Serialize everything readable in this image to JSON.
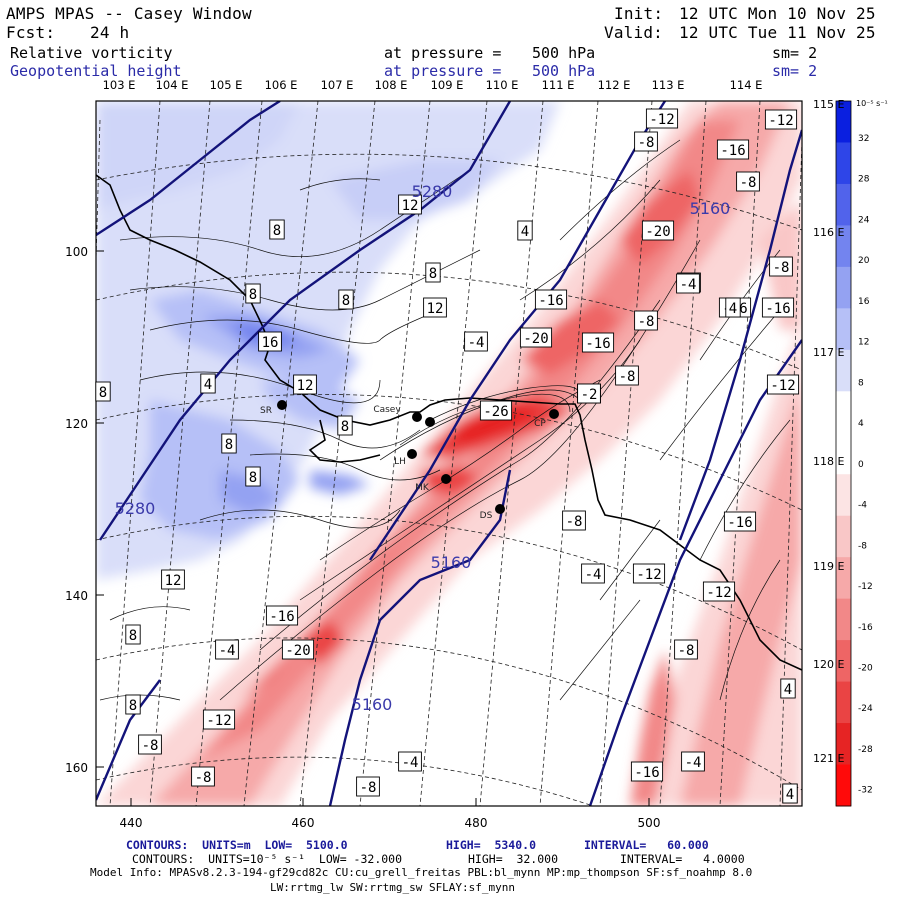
{
  "header": {
    "title": "AMPS MPAS -- Casey Window",
    "init_label": "Init:",
    "init_value": "12 UTC Mon 10 Nov 25",
    "fcst_label": "Fcst:",
    "fcst_value": "24 h",
    "valid_label": "Valid:",
    "valid_value": "12 UTC Tue 11 Nov 25"
  },
  "fields": [
    {
      "name": "Relative vorticity",
      "pressure_label": "at pressure =",
      "pressure_value": "500 hPa",
      "sm": "sm= 2"
    },
    {
      "name": "Geopotential height",
      "pressure_label": "at pressure =",
      "pressure_value": "500 hPa",
      "sm": "sm= 2"
    }
  ],
  "map": {
    "top_lon_labels": [
      "103 E",
      "104 E",
      "105 E",
      "106 E",
      "107 E",
      "108 E",
      "109 E",
      "110 E",
      "111 E",
      "112 E",
      "113 E",
      "114 E"
    ],
    "right_lon_labels": [
      "115 E",
      "116 E",
      "117 E",
      "118 E",
      "119 E",
      "120 E",
      "121 E"
    ],
    "y_ticks": [
      "100",
      "120",
      "140",
      "160"
    ],
    "x_ticks": [
      "440",
      "460",
      "480",
      "500"
    ],
    "stations": [
      {
        "label": "Casey"
      },
      {
        "label": "SR"
      },
      {
        "label": "LH"
      },
      {
        "label": "MK"
      },
      {
        "label": "DS"
      },
      {
        "label": "CP"
      }
    ],
    "height_labels": [
      "5280",
      "5160",
      "5280",
      "5160",
      "5160"
    ],
    "vort_labels": [
      "-12",
      "-12",
      "-8",
      "-16",
      "-8",
      "-20",
      "-4",
      "-8",
      "-8",
      "-16",
      "-20",
      "-16",
      "-4",
      "-8",
      "-4",
      "-16",
      "-12",
      "-4",
      "-2",
      "-26",
      "-8",
      "-16",
      "-8",
      "-4",
      "-12",
      "-12",
      "-16",
      "-20",
      "-12",
      "-8",
      "-8",
      "-16",
      "-4",
      "-8",
      "-4",
      "-4",
      "-16",
      "4",
      "12",
      "8",
      "8",
      "8",
      "8",
      "12",
      "16",
      "12",
      "4",
      "8",
      "8",
      "8",
      "12",
      "8",
      "8",
      "8",
      "4",
      "4",
      "4",
      "4"
    ]
  },
  "colorbar": {
    "unit": "10⁻⁵ s⁻¹",
    "labels": [
      "32",
      "28",
      "24",
      "20",
      "16",
      "12",
      "8",
      "4",
      "0",
      "-4",
      "-8",
      "-12",
      "-16",
      "-20",
      "-24",
      "-28",
      "-32"
    ],
    "colors": [
      "#0a1fe0",
      "#2e45e8",
      "#5163eb",
      "#7384ef",
      "#94a2f2",
      "#b6c0f7",
      "#d9def9",
      "#ffffff",
      "#ffffff",
      "#fce4e4",
      "#f9c7c7",
      "#f6a9a9",
      "#f28888",
      "#ee6565",
      "#ea4444",
      "#e62424",
      "#ff0a0a"
    ]
  },
  "footer": {
    "line1_a": "CONTOURS:  UNITS=m  LOW=  5100.0",
    "line1_b": "HIGH=  5340.0",
    "line1_c": "INTERVAL=   60.000",
    "line2_a": "CONTOURS:  UNITS=10⁻⁵ s⁻¹  LOW= -32.000",
    "line2_b": "HIGH=  32.000",
    "line2_c": "INTERVAL=   4.0000",
    "line3": "Model Info: MPASv8.2.3-194-gf29cd82c CU:cu_grell_freitas PBL:bl_mynn MP:mp_thompson SF:sf_noahmp 8.0",
    "line4": "LW:rrtmg_lw SW:rrtmg_sw SFLAY:sf_mynn"
  }
}
